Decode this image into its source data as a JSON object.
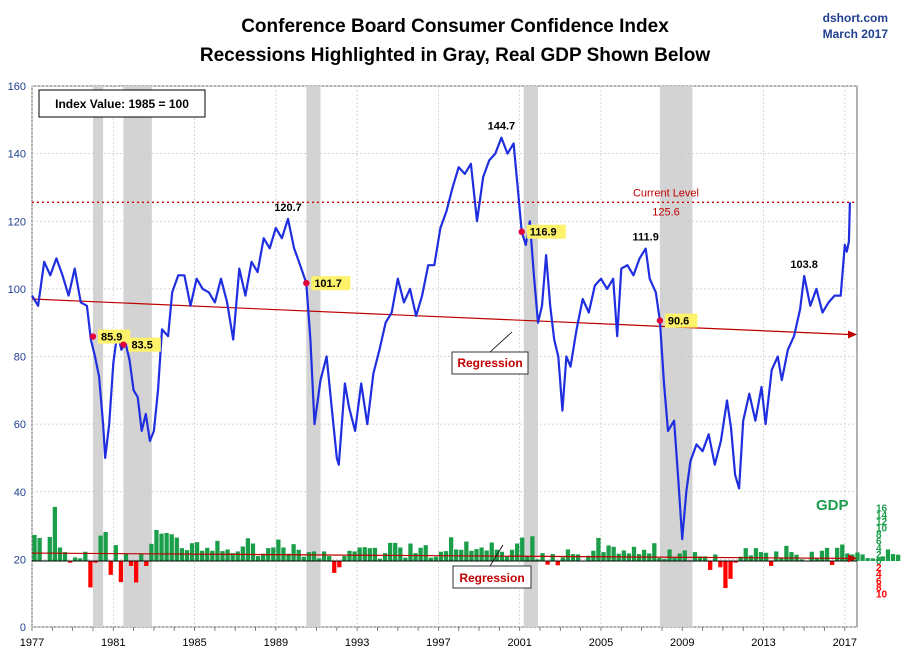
{
  "chart_data": {
    "type": "line",
    "title": "Conference Board Consumer Confidence Index",
    "subtitle": "Recessions Highlighted in Gray, Real GDP Shown Below",
    "credit": {
      "site": "dshort.com",
      "date": "March 2017"
    },
    "legend_box": "Index Value: 1985 = 100",
    "ylim": [
      0,
      160
    ],
    "yticks": [
      0,
      20,
      40,
      60,
      80,
      100,
      120,
      140,
      160
    ],
    "xlim": [
      1977,
      2017.6
    ],
    "xticks": [
      "1977",
      "1981",
      "1985",
      "1989",
      "1993",
      "1997",
      "2001",
      "2005",
      "2009",
      "2013",
      "2017"
    ],
    "recessions": [
      [
        1980.0,
        1980.5
      ],
      [
        1981.5,
        1982.9
      ],
      [
        1990.5,
        1991.2
      ],
      [
        2001.2,
        2001.9
      ],
      [
        2007.9,
        2009.5
      ]
    ],
    "series": [
      {
        "name": "Consumer Confidence Index",
        "color": "#1f2fe0",
        "points": [
          [
            1977.0,
            98
          ],
          [
            1977.3,
            95
          ],
          [
            1977.6,
            108
          ],
          [
            1977.9,
            104
          ],
          [
            1978.2,
            109
          ],
          [
            1978.5,
            104
          ],
          [
            1978.8,
            98
          ],
          [
            1979.1,
            106
          ],
          [
            1979.4,
            96
          ],
          [
            1979.7,
            95
          ],
          [
            1979.9,
            85
          ],
          [
            1980.1,
            80
          ],
          [
            1980.3,
            74
          ],
          [
            1980.5,
            60
          ],
          [
            1980.6,
            50
          ],
          [
            1980.8,
            60
          ],
          [
            1981.0,
            78
          ],
          [
            1981.2,
            87
          ],
          [
            1981.4,
            82
          ],
          [
            1981.6,
            84
          ],
          [
            1981.8,
            79
          ],
          [
            1982.0,
            70
          ],
          [
            1982.2,
            68
          ],
          [
            1982.4,
            58
          ],
          [
            1982.6,
            63
          ],
          [
            1982.8,
            55
          ],
          [
            1983.0,
            58
          ],
          [
            1983.2,
            70
          ],
          [
            1983.4,
            88
          ],
          [
            1983.7,
            86
          ],
          [
            1983.9,
            99
          ],
          [
            1984.2,
            104
          ],
          [
            1984.5,
            104
          ],
          [
            1984.8,
            95
          ],
          [
            1985.1,
            103
          ],
          [
            1985.4,
            100
          ],
          [
            1985.7,
            99
          ],
          [
            1986.0,
            96
          ],
          [
            1986.3,
            103
          ],
          [
            1986.6,
            96
          ],
          [
            1986.9,
            85
          ],
          [
            1987.2,
            106
          ],
          [
            1987.5,
            98
          ],
          [
            1987.8,
            108
          ],
          [
            1988.1,
            105
          ],
          [
            1988.4,
            115
          ],
          [
            1988.7,
            112
          ],
          [
            1989.0,
            118
          ],
          [
            1989.3,
            115
          ],
          [
            1989.6,
            120.7
          ],
          [
            1989.9,
            112
          ],
          [
            1990.2,
            107
          ],
          [
            1990.5,
            101.7
          ],
          [
            1990.7,
            85
          ],
          [
            1990.9,
            60
          ],
          [
            1991.2,
            73
          ],
          [
            1991.5,
            80
          ],
          [
            1991.8,
            62
          ],
          [
            1992.0,
            50
          ],
          [
            1992.1,
            48
          ],
          [
            1992.4,
            72
          ],
          [
            1992.6,
            65
          ],
          [
            1992.9,
            58
          ],
          [
            1993.2,
            72
          ],
          [
            1993.5,
            60
          ],
          [
            1993.8,
            75
          ],
          [
            1994.1,
            82
          ],
          [
            1994.4,
            90
          ],
          [
            1994.7,
            93
          ],
          [
            1995.0,
            103
          ],
          [
            1995.3,
            96
          ],
          [
            1995.6,
            100
          ],
          [
            1995.9,
            92
          ],
          [
            1996.2,
            98
          ],
          [
            1996.5,
            107
          ],
          [
            1996.8,
            107
          ],
          [
            1997.1,
            118
          ],
          [
            1997.4,
            123
          ],
          [
            1997.7,
            130
          ],
          [
            1998.0,
            136
          ],
          [
            1998.3,
            134
          ],
          [
            1998.6,
            137
          ],
          [
            1998.9,
            120
          ],
          [
            1999.2,
            133
          ],
          [
            1999.5,
            138
          ],
          [
            1999.8,
            140
          ],
          [
            2000.1,
            144.7
          ],
          [
            2000.4,
            140
          ],
          [
            2000.7,
            143
          ],
          [
            2000.9,
            130
          ],
          [
            2001.1,
            116.9
          ],
          [
            2001.3,
            113
          ],
          [
            2001.5,
            120
          ],
          [
            2001.7,
            104
          ],
          [
            2001.9,
            90
          ],
          [
            2002.1,
            95
          ],
          [
            2002.3,
            110
          ],
          [
            2002.5,
            95
          ],
          [
            2002.7,
            85
          ],
          [
            2002.9,
            80
          ],
          [
            2003.1,
            64
          ],
          [
            2003.3,
            80
          ],
          [
            2003.5,
            77
          ],
          [
            2003.8,
            88
          ],
          [
            2004.1,
            97
          ],
          [
            2004.4,
            93
          ],
          [
            2004.7,
            101
          ],
          [
            2005.0,
            103
          ],
          [
            2005.3,
            100
          ],
          [
            2005.6,
            103
          ],
          [
            2005.8,
            86
          ],
          [
            2006.0,
            106
          ],
          [
            2006.3,
            107
          ],
          [
            2006.6,
            104
          ],
          [
            2006.9,
            109
          ],
          [
            2007.2,
            111.9
          ],
          [
            2007.4,
            103
          ],
          [
            2007.7,
            99
          ],
          [
            2007.9,
            90.6
          ],
          [
            2008.1,
            72
          ],
          [
            2008.3,
            58
          ],
          [
            2008.6,
            61
          ],
          [
            2008.8,
            44
          ],
          [
            2009.0,
            26
          ],
          [
            2009.2,
            40
          ],
          [
            2009.4,
            49
          ],
          [
            2009.7,
            54
          ],
          [
            2010.0,
            52
          ],
          [
            2010.3,
            57
          ],
          [
            2010.6,
            48
          ],
          [
            2010.9,
            55
          ],
          [
            2011.2,
            67
          ],
          [
            2011.4,
            59
          ],
          [
            2011.6,
            45
          ],
          [
            2011.8,
            41
          ],
          [
            2012.0,
            61
          ],
          [
            2012.3,
            69
          ],
          [
            2012.6,
            61
          ],
          [
            2012.9,
            71
          ],
          [
            2013.1,
            60
          ],
          [
            2013.4,
            76
          ],
          [
            2013.7,
            80
          ],
          [
            2013.9,
            73
          ],
          [
            2014.2,
            82
          ],
          [
            2014.5,
            86
          ],
          [
            2014.8,
            94
          ],
          [
            2015.0,
            103.8
          ],
          [
            2015.3,
            95
          ],
          [
            2015.6,
            100
          ],
          [
            2015.9,
            93
          ],
          [
            2016.2,
            96
          ],
          [
            2016.5,
            98
          ],
          [
            2016.8,
            98
          ],
          [
            2017.0,
            113
          ],
          [
            2017.1,
            111
          ],
          [
            2017.2,
            114
          ],
          [
            2017.25,
            125.6
          ]
        ]
      },
      {
        "name": "Regression",
        "color": "#c00000",
        "points": [
          [
            1977.0,
            97
          ],
          [
            2017.6,
            86.5
          ]
        ]
      }
    ],
    "annotations": [
      {
        "x": 1989.6,
        "y": 120.7,
        "text": "120.7",
        "highlight": false
      },
      {
        "x": 1990.5,
        "y": 101.7,
        "text": "101.7",
        "highlight": true
      },
      {
        "x": 1980.0,
        "y": 85.9,
        "text": "85.9",
        "highlight": true
      },
      {
        "x": 1981.5,
        "y": 83.5,
        "text": "83.5",
        "highlight": true
      },
      {
        "x": 2000.1,
        "y": 144.7,
        "text": "144.7",
        "highlight": false
      },
      {
        "x": 2001.1,
        "y": 116.9,
        "text": "116.9",
        "highlight": true
      },
      {
        "x": 2007.2,
        "y": 111.9,
        "text": "111.9",
        "highlight": false
      },
      {
        "x": 2007.9,
        "y": 90.6,
        "text": "90.6",
        "highlight": true
      },
      {
        "x": 2015.0,
        "y": 103.8,
        "text": "103.8",
        "highlight": false
      }
    ],
    "current_level": {
      "label": "Current Level",
      "value": 125.6,
      "text": "125.6"
    },
    "regression_label": "Regression",
    "gdp": {
      "label": "GDP",
      "regression_label": "Regression",
      "ticks_pos": [
        "16",
        "14",
        "12",
        "10",
        "8",
        "6",
        "4",
        "2",
        "0"
      ],
      "ticks_neg": [
        "2",
        "4",
        "6",
        "8",
        "10"
      ],
      "colors": {
        "positive": "#1a9e4a",
        "negative": "#ff0000"
      },
      "start_year": 1977.0,
      "values": [
        7.9,
        7.0,
        0.2,
        7.3,
        16.4,
        4.1,
        2.7,
        -0.5,
        1.1,
        0.8,
        2.8,
        -8.0,
        -0.5,
        7.7,
        8.8,
        -4.2,
        4.8,
        -6.4,
        2.2,
        -1.5,
        -6.5,
        2.2,
        -1.5,
        5.2,
        9.4,
        8.3,
        8.5,
        8.1,
        7.1,
        3.9,
        3.3,
        5.4,
        5.7,
        3.1,
        4.0,
        3.1,
        6.1,
        3.0,
        3.5,
        2.4,
        2.9,
        4.4,
        6.9,
        5.3,
        1.5,
        2.2,
        3.9,
        4.1,
        6.5,
        4.1,
        2.2,
        5.1,
        3.4,
        1.3,
        2.7,
        2.9,
        0.8,
        2.9,
        1.5,
        -3.6,
        -1.9,
        1.5,
        3.1,
        2.9,
        4.1,
        4.2,
        3.9,
        4.0,
        0.7,
        2.4,
        5.5,
        5.5,
        4.1,
        1.0,
        5.3,
        2.4,
        4.0,
        4.8,
        1.0,
        1.3,
        2.8,
        3.0,
        7.2,
        3.5,
        3.4,
        5.9,
        3.1,
        3.6,
        4.1,
        3.2,
        5.6,
        3.4,
        2.8,
        1.4,
        3.4,
        5.3,
        7.1,
        1.5,
        7.5,
        0.5,
        2.4,
        -1.1,
        2.1,
        -1.3,
        1.1,
        3.5,
        2.1,
        2.0,
        0.1,
        1.6,
        3.1,
        7.0,
        2.7,
        4.7,
        4.3,
        2.2,
        3.2,
        2.3,
        4.3,
        2.1,
        3.4,
        2.3,
        5.4,
        0.9,
        0.6,
        3.5,
        0.9,
        2.3,
        3.2,
        0.2,
        2.7,
        1.4,
        1.4,
        -2.7,
        2.0,
        -1.9,
        -8.2,
        -5.4,
        -0.5,
        1.3,
        3.9,
        1.7,
        3.9,
        2.7,
        2.5,
        -1.5,
        2.9,
        0.8,
        4.6,
        2.7,
        1.9,
        0.5,
        0.1,
        2.8,
        0.8,
        3.1,
        4.0,
        -1.2,
        4.0,
        5.0,
        2.3,
        2.0,
        2.6,
        2.0,
        0.9,
        0.8,
        0.6,
        1.4,
        3.5,
        2.1,
        1.9
      ]
    }
  }
}
